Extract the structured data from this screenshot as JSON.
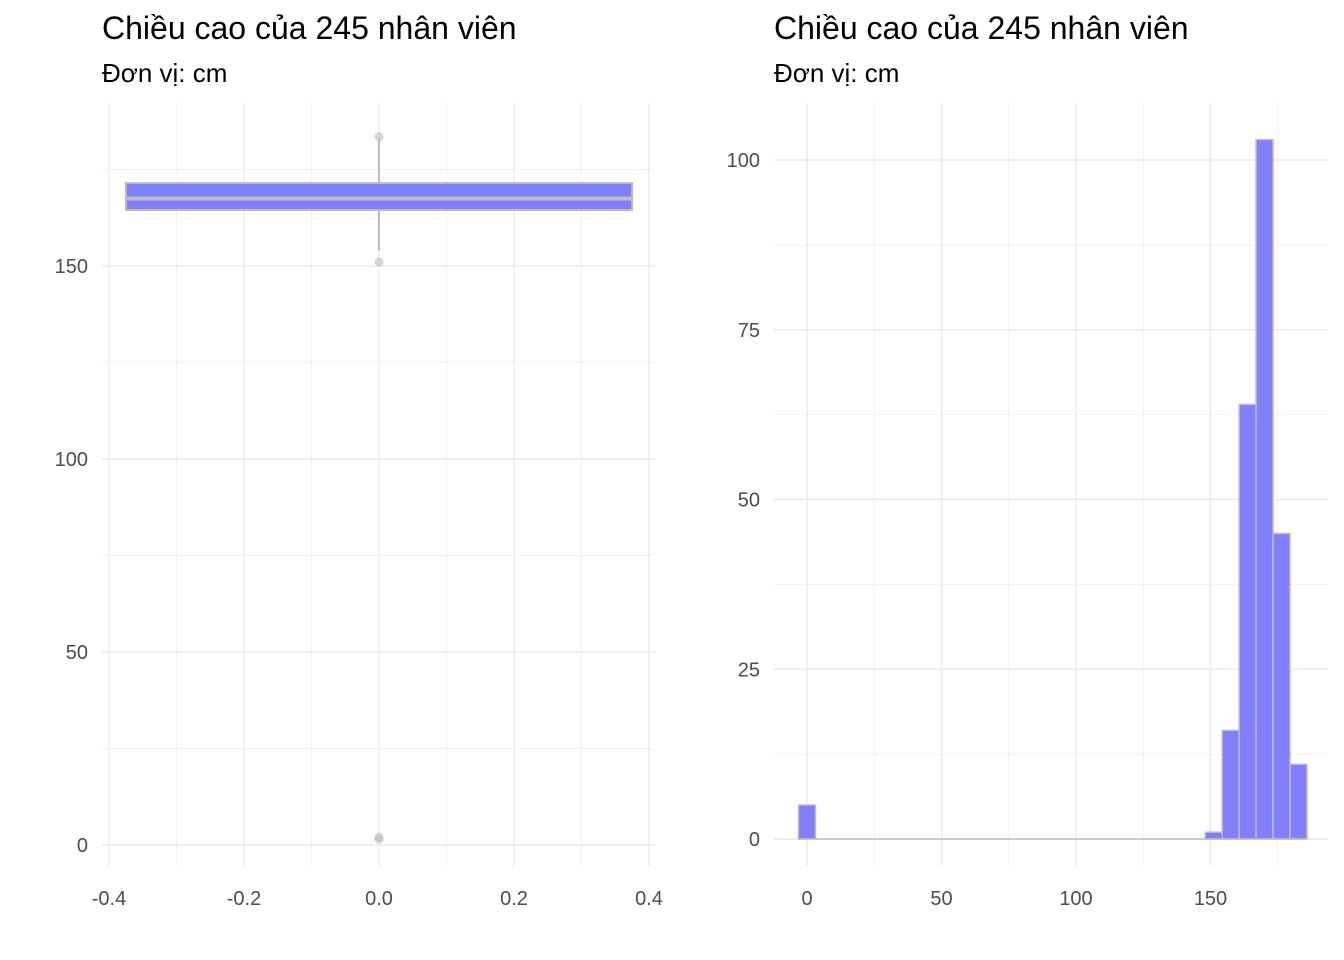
{
  "chart_data": [
    {
      "type": "boxplot",
      "title": "Chiều cao của 245 nhân viên",
      "subtitle": "Đơn vị: cm",
      "xlabel": "",
      "ylabel": "",
      "xlim": [
        -0.4,
        0.4
      ],
      "ylim": [
        0,
        185
      ],
      "x_ticks": [
        "-0.4",
        "-0.2",
        "0.0",
        "0.2",
        "0.4"
      ],
      "x_tick_values": [
        -0.4,
        -0.2,
        0.0,
        0.2,
        0.4
      ],
      "y_ticks": [
        "0",
        "50",
        "100",
        "150"
      ],
      "y_tick_values": [
        0,
        50,
        100,
        150
      ],
      "box": {
        "x_center": 0.0,
        "x_range": [
          -0.375,
          0.375
        ],
        "q1": 164.5,
        "median": 167.5,
        "q3": 171.5,
        "whisker_low": 154,
        "whisker_high": 183,
        "outliers": [
          183.5,
          151,
          2,
          1.5
        ]
      },
      "fill_color": "#8080ff",
      "line_color": "#bdbdbd",
      "grid": true
    },
    {
      "type": "bar",
      "title": "Chiều cao của 245 nhân viên",
      "subtitle": "Đơn vị: cm",
      "xlabel": "",
      "ylabel": "",
      "xlim": [
        -5,
        185
      ],
      "ylim": [
        0,
        105
      ],
      "x_ticks": [
        "0",
        "50",
        "100",
        "150"
      ],
      "x_tick_values": [
        0,
        50,
        100,
        150
      ],
      "y_ticks": [
        "0",
        "25",
        "50",
        "75",
        "100"
      ],
      "y_tick_values": [
        0,
        25,
        50,
        75,
        100
      ],
      "bin_width": 6.3,
      "bins": [
        {
          "center": 0,
          "count": 5
        },
        {
          "center": 6.3,
          "count": 0
        },
        {
          "center": 12.6,
          "count": 0
        },
        {
          "center": 18.9,
          "count": 0
        },
        {
          "center": 25.2,
          "count": 0
        },
        {
          "center": 31.5,
          "count": 0
        },
        {
          "center": 37.8,
          "count": 0
        },
        {
          "center": 44.1,
          "count": 0
        },
        {
          "center": 50.4,
          "count": 0
        },
        {
          "center": 56.7,
          "count": 0
        },
        {
          "center": 63.0,
          "count": 0
        },
        {
          "center": 69.3,
          "count": 0
        },
        {
          "center": 75.6,
          "count": 0
        },
        {
          "center": 81.9,
          "count": 0
        },
        {
          "center": 88.2,
          "count": 0
        },
        {
          "center": 94.5,
          "count": 0
        },
        {
          "center": 100.8,
          "count": 0
        },
        {
          "center": 107.1,
          "count": 0
        },
        {
          "center": 113.4,
          "count": 0
        },
        {
          "center": 119.7,
          "count": 0
        },
        {
          "center": 126.0,
          "count": 0
        },
        {
          "center": 132.3,
          "count": 0
        },
        {
          "center": 138.6,
          "count": 0
        },
        {
          "center": 144.9,
          "count": 0
        },
        {
          "center": 151.2,
          "count": 1
        },
        {
          "center": 157.5,
          "count": 16
        },
        {
          "center": 163.8,
          "count": 64
        },
        {
          "center": 170.1,
          "count": 103
        },
        {
          "center": 176.4,
          "count": 45
        },
        {
          "center": 182.7,
          "count": 11
        }
      ],
      "fill_color": "#8080ff",
      "line_color": "#bdbdbd",
      "grid": true
    }
  ]
}
